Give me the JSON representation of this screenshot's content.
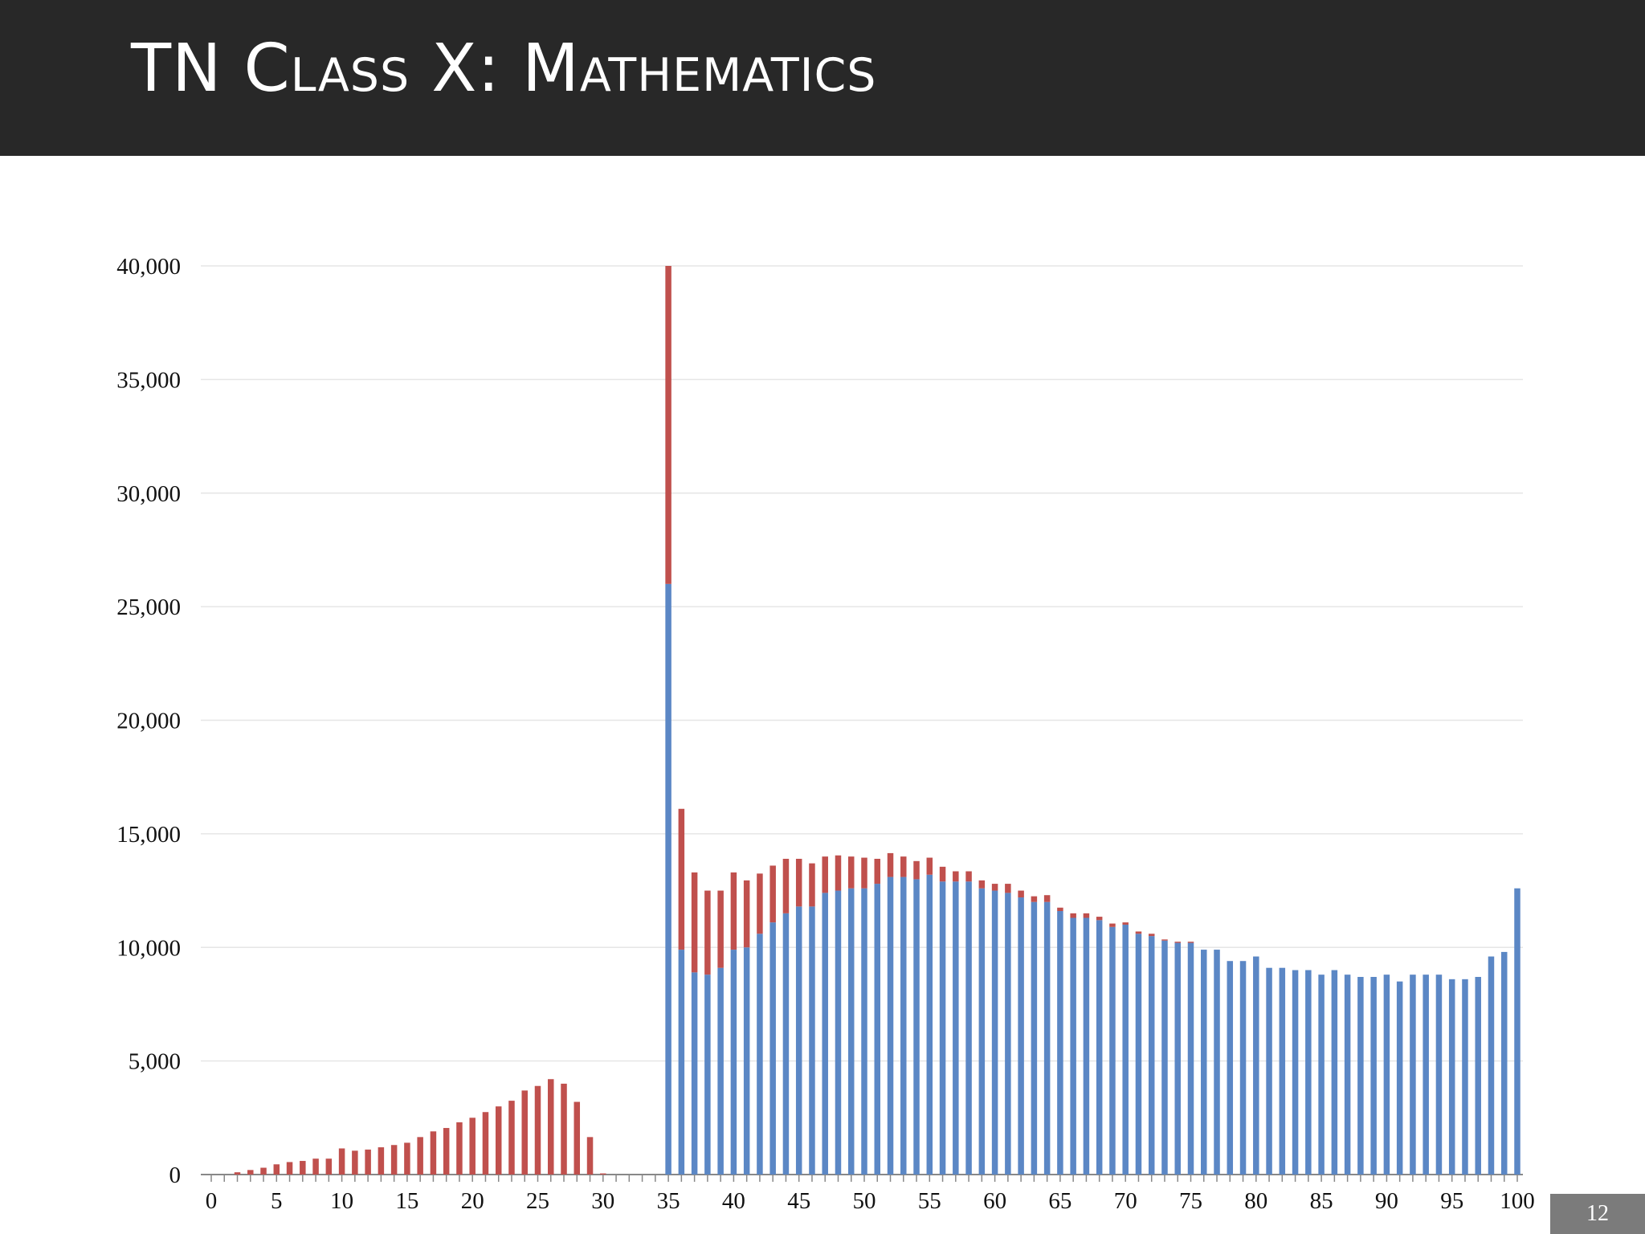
{
  "slide": {
    "title": "TN Class X: Mathematics",
    "page_number": "12"
  },
  "colors": {
    "title_bar": "#282828",
    "series_pass": "#5b87c5",
    "series_fail": "#c0504d",
    "gridline": "#e6e6e6",
    "axis": "#888888",
    "page_badge": "#7b7b7b"
  },
  "chart_data": {
    "type": "bar",
    "stacked": true,
    "title": "",
    "xlabel": "",
    "ylabel": "",
    "x": [
      0,
      1,
      2,
      3,
      4,
      5,
      6,
      7,
      8,
      9,
      10,
      11,
      12,
      13,
      14,
      15,
      16,
      17,
      18,
      19,
      20,
      21,
      22,
      23,
      24,
      25,
      26,
      27,
      28,
      29,
      30,
      31,
      32,
      33,
      34,
      35,
      36,
      37,
      38,
      39,
      40,
      41,
      42,
      43,
      44,
      45,
      46,
      47,
      48,
      49,
      50,
      51,
      52,
      53,
      54,
      55,
      56,
      57,
      58,
      59,
      60,
      61,
      62,
      63,
      64,
      65,
      66,
      67,
      68,
      69,
      70,
      71,
      72,
      73,
      74,
      75,
      76,
      77,
      78,
      79,
      80,
      81,
      82,
      83,
      84,
      85,
      86,
      87,
      88,
      89,
      90,
      91,
      92,
      93,
      94,
      95,
      96,
      97,
      98,
      99,
      100
    ],
    "xlim": [
      0,
      100
    ],
    "ylim": [
      0,
      40000
    ],
    "x_ticks": [
      "0",
      "5",
      "10",
      "15",
      "20",
      "25",
      "30",
      "35",
      "40",
      "45",
      "50",
      "55",
      "60",
      "65",
      "70",
      "75",
      "80",
      "85",
      "90",
      "95",
      "100"
    ],
    "y_ticks": [
      "0",
      "5,000",
      "10,000",
      "15,000",
      "20,000",
      "25,000",
      "30,000",
      "35,000",
      "40,000"
    ],
    "grid": true,
    "legend": "none",
    "series": [
      {
        "values": [
          0,
          0,
          0,
          0,
          0,
          0,
          0,
          0,
          0,
          0,
          0,
          0,
          0,
          0,
          0,
          0,
          0,
          0,
          0,
          0,
          0,
          0,
          0,
          0,
          0,
          0,
          0,
          0,
          0,
          0,
          0,
          0,
          0,
          0,
          0,
          26000,
          9900,
          8900,
          8800,
          9100,
          9900,
          10000,
          10600,
          11100,
          11500,
          11800,
          11800,
          12400,
          12500,
          12600,
          12600,
          12800,
          13100,
          13100,
          13000,
          13200,
          12900,
          12900,
          12900,
          12600,
          12500,
          12400,
          12200,
          12000,
          12000,
          11600,
          11300,
          11300,
          11200,
          10900,
          11000,
          10600,
          10500,
          10300,
          10200,
          10200,
          9900,
          9900,
          9400,
          9400,
          9600,
          9100,
          9100,
          9000,
          9000,
          8800,
          9000,
          8800,
          8700,
          8700,
          8800,
          8500,
          8800,
          8800,
          8800,
          8600,
          8600,
          8700,
          9600,
          9800,
          12600
        ]
      },
      {
        "values": [
          0,
          0,
          100,
          200,
          300,
          450,
          550,
          600,
          700,
          700,
          1150,
          1050,
          1100,
          1200,
          1300,
          1400,
          1650,
          1900,
          2050,
          2300,
          2500,
          2750,
          3000,
          3250,
          3700,
          3900,
          4200,
          4000,
          3200,
          1650,
          50,
          0,
          0,
          0,
          0,
          14000,
          6200,
          4400,
          3700,
          3400,
          3400,
          2950,
          2650,
          2500,
          2400,
          2100,
          1900,
          1600,
          1550,
          1400,
          1350,
          1100,
          1050,
          900,
          800,
          750,
          650,
          450,
          450,
          350,
          300,
          400,
          300,
          250,
          300,
          150,
          200,
          200,
          150,
          150,
          100,
          100,
          100,
          50,
          50,
          50,
          0,
          0,
          0,
          0,
          0,
          0,
          0,
          0,
          0,
          0,
          0,
          0,
          0,
          0,
          0,
          0,
          0,
          0,
          0,
          0,
          0,
          0,
          0,
          0,
          0
        ]
      }
    ]
  }
}
